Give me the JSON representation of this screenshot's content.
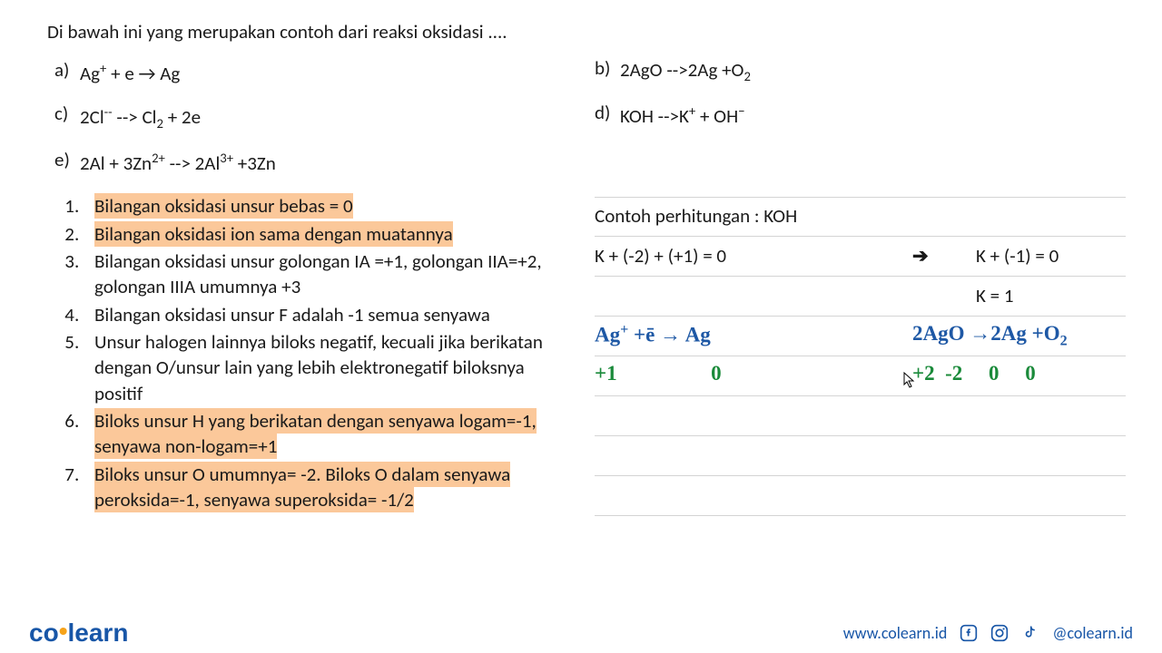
{
  "question": "Di bawah ini yang merupakan contoh dari reaksi oksidasi ....",
  "options": {
    "a": {
      "label": "a)",
      "html": "Ag<span class='sup'>+</span> + e → Ag"
    },
    "b": {
      "label": "b)",
      "html": "2AgO --&gt;2Ag +O<span class='sub'>2</span>"
    },
    "c": {
      "label": "c)",
      "html": "2Cl<span class='sup'>--</span> --&gt; Cl<span class='sub'>2</span> + 2e"
    },
    "d": {
      "label": "d)",
      "html": "KOH --&gt;K<span class='sup'>+</span> + OH<span class='sup'>−</span>"
    },
    "e": {
      "label": "e)",
      "html": "2Al + 3Zn<span class='sup'>2+</span> --&gt; 2Al<span class='sup'>3+</span> +3Zn"
    }
  },
  "rules": [
    {
      "parts": [
        {
          "text": "Bilangan oksidasi unsur bebas = 0",
          "hl": true
        }
      ]
    },
    {
      "parts": [
        {
          "text": "Bilangan oksidasi ion sama dengan muatannya",
          "hl": true
        }
      ]
    },
    {
      "parts": [
        {
          "text": "Bilangan oksidasi unsur golongan IA =+1, golongan IIA=+2, golongan IIIA umumnya +3",
          "hl": false
        }
      ]
    },
    {
      "parts": [
        {
          "text": "Bilangan oksidasi unsur F adalah -1 semua senyawa",
          "hl": false
        }
      ]
    },
    {
      "parts": [
        {
          "text": "Unsur halogen lainnya biloks negatif, kecuali jika berikatan dengan O/unsur lain yang lebih elektronegatif biloksnya positif",
          "hl": false
        }
      ]
    },
    {
      "parts": [
        {
          "text": "Biloks unsur H yang berikatan dengan senyawa logam=-1, senyawa non-logam=+1",
          "hl": true
        }
      ]
    },
    {
      "parts": [
        {
          "text": "Biloks unsur O umumnya= -2. Biloks O dalam senyawa peroksida=-1, senyawa superoksida= -1/2",
          "hl": true
        }
      ]
    }
  ],
  "calc": {
    "title": "Contoh perhitungan : KOH",
    "row1_left": "K + (-2) + (+1) = 0",
    "row1_arrow": "➔",
    "row1_right": "K + (-1) = 0",
    "row2_right": "K = 1",
    "hw": {
      "eq1": "Ag<span class='sup'>+</span> +ē → Ag",
      "eq2": "2AgO →2Ag +O<span class='sub'>2</span>",
      "ox1": "+1&nbsp;&nbsp;&nbsp;&nbsp;&nbsp;&nbsp;&nbsp;&nbsp;&nbsp;&nbsp;&nbsp;&nbsp;&nbsp;&nbsp;&nbsp;&nbsp;&nbsp;&nbsp;0",
      "ox2": "+2&nbsp;&nbsp;-2&nbsp;&nbsp;&nbsp;&nbsp;&nbsp;0&nbsp;&nbsp;&nbsp;&nbsp;&nbsp;0"
    }
  },
  "footer": {
    "logo_1": "co",
    "logo_dot": "•",
    "logo_2": "learn",
    "url": "www.colearn.id",
    "handle": "@colearn.id"
  },
  "colors": {
    "highlight": "#fbc89a",
    "blue_ink": "#1e58a5",
    "green_ink": "#1a8a3a",
    "brand_blue": "#1856a7",
    "brand_orange": "#f6a31a",
    "line": "#d4d4d4"
  }
}
